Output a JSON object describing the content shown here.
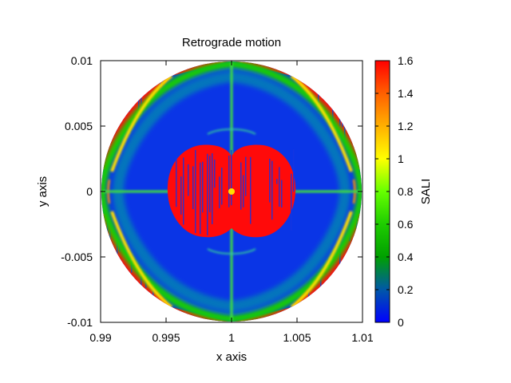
{
  "chart_data": {
    "type": "heatmap",
    "title": "Retrograde motion",
    "xlabel": "x axis",
    "ylabel": "y axis",
    "colorbar_label": "SALI",
    "xlim": [
      0.99,
      1.01
    ],
    "ylim": [
      -0.01,
      0.01
    ],
    "x_ticks": [
      0.99,
      0.995,
      1,
      1.005,
      1.01
    ],
    "x_tick_labels": [
      "0.99",
      "0.995",
      "1",
      "1.005",
      "1.01"
    ],
    "y_ticks": [
      -0.01,
      -0.005,
      0,
      0.005,
      0.01
    ],
    "y_tick_labels": [
      "-0.01",
      "-0.005",
      "0",
      "0.005",
      "0.01"
    ],
    "color_range": [
      0,
      1.6
    ],
    "cb_ticks": [
      0,
      0.2,
      0.4,
      0.6,
      0.8,
      1,
      1.2,
      1.4,
      1.6
    ],
    "cb_tick_labels": [
      "0",
      "0.2",
      "0.4",
      "0.6",
      "0.8",
      "1",
      "1.2",
      "1.4",
      "1.6"
    ],
    "colormap_stops": [
      {
        "value": 0,
        "color": "#0000ff"
      },
      {
        "value": 0.2,
        "color": "#0058a8"
      },
      {
        "value": 0.4,
        "color": "#00a000"
      },
      {
        "value": 0.6,
        "color": "#1ecc00"
      },
      {
        "value": 0.8,
        "color": "#66ff00"
      },
      {
        "value": 1.0,
        "color": "#ffff00"
      },
      {
        "value": 1.2,
        "color": "#ffb000"
      },
      {
        "value": 1.4,
        "color": "#ff6000"
      },
      {
        "value": 1.6,
        "color": "#ff0000"
      }
    ],
    "domain": {
      "center": [
        1.0,
        0.0
      ],
      "radius": 0.01
    },
    "regions": [
      {
        "name": "ordered-background",
        "value": 0.05,
        "description": "regular (ordered) orbits fill most of the disk"
      },
      {
        "name": "central-chaotic-zone",
        "value": 1.6,
        "center": [
          1.0,
          0.0
        ],
        "radius": 0.0048
      },
      {
        "name": "corner-chaotic-zones",
        "value": 1.6,
        "description": "edge regions near the four diagonal corners"
      },
      {
        "name": "separatrix-bands",
        "value": 0.9,
        "description": "green/yellow bands along the square-like separatrix and the axes"
      }
    ]
  }
}
